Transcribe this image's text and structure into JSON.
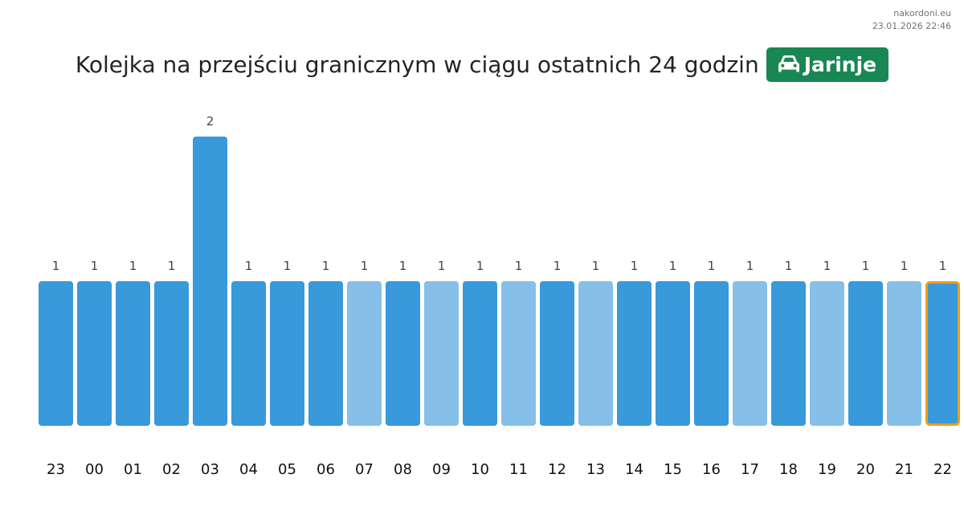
{
  "header": {
    "site": "nakordoni.eu",
    "timestamp": "23.01.2026 22:46",
    "title": "Kolejka na przejściu granicznym w ciągu ostatnich 24 godzin",
    "badge_label": "Jarinje",
    "badge_icon": "car-icon",
    "badge_color": "#198754"
  },
  "colors": {
    "bar_primary": "#3899db",
    "bar_light": "#86c0e8",
    "current_outline": "#f39c12"
  },
  "chart_data": {
    "type": "bar",
    "categories": [
      "23",
      "00",
      "01",
      "02",
      "03",
      "04",
      "05",
      "06",
      "07",
      "08",
      "09",
      "10",
      "11",
      "12",
      "13",
      "14",
      "15",
      "16",
      "17",
      "18",
      "19",
      "20",
      "21",
      "22"
    ],
    "values": [
      1,
      1,
      1,
      1,
      2,
      1,
      1,
      1,
      1,
      1,
      1,
      1,
      1,
      1,
      1,
      1,
      1,
      1,
      1,
      1,
      1,
      1,
      1,
      1
    ],
    "value_labels": [
      "1",
      "1",
      "1",
      "1",
      "2",
      "1",
      "1",
      "1",
      "1",
      "1",
      "1",
      "1",
      "1",
      "1",
      "1",
      "1",
      "1",
      "1",
      "1",
      "1",
      "1",
      "1",
      "1",
      "1"
    ],
    "shade": [
      "primary",
      "primary",
      "primary",
      "primary",
      "primary",
      "primary",
      "primary",
      "primary",
      "light",
      "primary",
      "light",
      "primary",
      "light",
      "primary",
      "light",
      "primary",
      "primary",
      "primary",
      "light",
      "primary",
      "light",
      "primary",
      "light",
      "primary"
    ],
    "highlighted_category": "22",
    "title": "",
    "xlabel": "",
    "ylabel": "",
    "ylim": [
      0,
      2
    ],
    "grid": false,
    "legend": "none"
  }
}
